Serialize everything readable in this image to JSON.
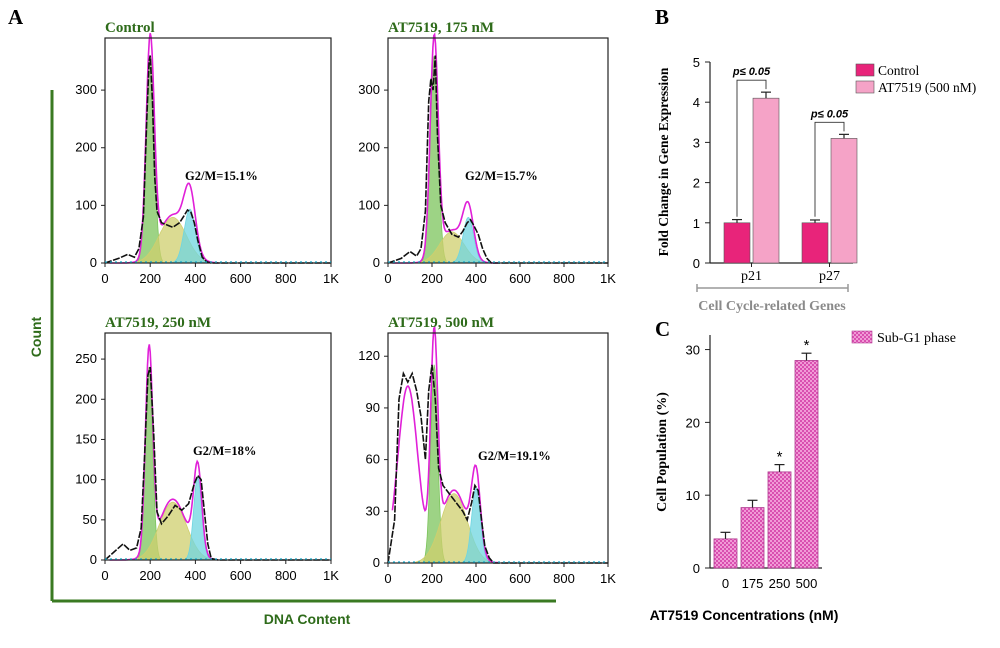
{
  "figure": {
    "panel_labels": {
      "a": "A",
      "b": "B",
      "c": "C"
    },
    "shared_y_label": "Count",
    "shared_x_label": "DNA Content",
    "colors": {
      "green_text": "#2e6b1a",
      "axis_green": "#3a7a22",
      "trace_black": "#111111",
      "envelope_magenta": "#e020d8",
      "g1_fill": "#7cc45c",
      "s_fill": "#cfcf6e",
      "g2_fill": "#6fd6e0",
      "control_bar": "#e8247a",
      "treated_bar": "#f5a3c7",
      "subg1_bar": "#f19ad6",
      "bracket_gray": "#999999",
      "group_label_gray": "#8a8a8a"
    }
  },
  "chart_data": [
    {
      "type": "area",
      "title": "Control",
      "annotation": "G2/M=15.1%",
      "x_ticks": [
        "0",
        "200",
        "400",
        "600",
        "800",
        "1K"
      ],
      "y_ticks": [
        "0",
        "100",
        "200",
        "300"
      ],
      "xlim": [
        0,
        1000
      ],
      "ylim": [
        0,
        380
      ],
      "series": [
        {
          "x": [
            0,
            60,
            100,
            130,
            150,
            170,
            185,
            195,
            200,
            210,
            220,
            230,
            250,
            280,
            300,
            330,
            350,
            365,
            380,
            395,
            410,
            430,
            450,
            470,
            500
          ],
          "y": [
            0,
            8,
            15,
            10,
            25,
            80,
            250,
            350,
            360,
            280,
            150,
            90,
            70,
            65,
            62,
            70,
            82,
            92,
            88,
            70,
            40,
            10,
            2,
            0,
            0
          ]
        }
      ]
    },
    {
      "type": "area",
      "title": "AT7519, 175 nM",
      "annotation": "G2/M=15.7%",
      "x_ticks": [
        "0",
        "200",
        "400",
        "600",
        "800",
        "1K"
      ],
      "y_ticks": [
        "0",
        "100",
        "200",
        "300"
      ],
      "xlim": [
        0,
        1000
      ],
      "ylim": [
        0,
        380
      ],
      "series": [
        {
          "x": [
            0,
            60,
            100,
            130,
            150,
            170,
            185,
            195,
            205,
            215,
            225,
            240,
            260,
            290,
            320,
            340,
            360,
            375,
            390,
            410,
            430,
            450,
            470,
            500
          ],
          "y": [
            0,
            8,
            20,
            12,
            25,
            90,
            280,
            320,
            300,
            360,
            220,
            100,
            70,
            50,
            45,
            55,
            70,
            75,
            65,
            50,
            25,
            8,
            0,
            0
          ]
        }
      ]
    },
    {
      "type": "area",
      "title": "AT7519, 250 nM",
      "annotation": "G2/M=18%",
      "x_ticks": [
        "0",
        "200",
        "400",
        "600",
        "800",
        "1K"
      ],
      "y_ticks": [
        "0",
        "50",
        "100",
        "150",
        "200",
        "250"
      ],
      "xlim": [
        0,
        1000
      ],
      "ylim": [
        0,
        275
      ],
      "series": [
        {
          "x": [
            0,
            40,
            80,
            110,
            140,
            160,
            175,
            190,
            200,
            215,
            230,
            250,
            280,
            310,
            340,
            370,
            395,
            410,
            425,
            440,
            455,
            470,
            500
          ],
          "y": [
            0,
            10,
            20,
            12,
            15,
            40,
            130,
            230,
            240,
            160,
            60,
            45,
            55,
            68,
            62,
            70,
            95,
            105,
            100,
            60,
            20,
            2,
            0
          ]
        }
      ]
    },
    {
      "type": "area",
      "title": "AT7519, 500 nM",
      "annotation": "G2/M=19.1%",
      "x_ticks": [
        "0",
        "200",
        "400",
        "600",
        "800",
        "1K"
      ],
      "y_ticks": [
        "0",
        "30",
        "60",
        "90",
        "120"
      ],
      "xlim": [
        0,
        1000
      ],
      "ylim": [
        0,
        130
      ],
      "series": [
        {
          "x": [
            0,
            30,
            50,
            70,
            90,
            110,
            130,
            150,
            170,
            185,
            200,
            215,
            230,
            250,
            280,
            310,
            340,
            360,
            380,
            395,
            410,
            425,
            440,
            460,
            480,
            500
          ],
          "y": [
            0,
            25,
            95,
            110,
            105,
            110,
            100,
            85,
            60,
            100,
            115,
            95,
            55,
            45,
            40,
            35,
            30,
            25,
            35,
            45,
            42,
            25,
            10,
            3,
            0,
            0
          ]
        }
      ]
    },
    {
      "type": "bar",
      "ylabel": "Fold Change in Gene Expression",
      "group_label": "Cell Cycle-related Genes",
      "categories": [
        "p21",
        "p27"
      ],
      "ylim": [
        0,
        5
      ],
      "y_ticks": [
        "0",
        "1",
        "2",
        "3",
        "4",
        "5"
      ],
      "legend_position": "top-right",
      "series": [
        {
          "name": "Control",
          "values": [
            1.0,
            1.0
          ],
          "errors": [
            0.08,
            0.07
          ]
        },
        {
          "name": "AT7519 (500 nM)",
          "values": [
            4.1,
            3.1
          ],
          "errors": [
            0.15,
            0.1
          ]
        }
      ],
      "annotations": [
        "p≤ 0.05",
        "p≤ 0.05"
      ]
    },
    {
      "type": "bar",
      "ylabel": "Cell Population (%)",
      "xlabel": "AT7519 Concentrations (nM)",
      "categories": [
        "0",
        "175",
        "250",
        "500"
      ],
      "ylim": [
        0,
        32
      ],
      "y_ticks": [
        "0",
        "10",
        "20",
        "30"
      ],
      "legend_position": "top-right",
      "series": [
        {
          "name": "Sub-G1 phase",
          "values": [
            4.0,
            8.3,
            13.2,
            28.5
          ],
          "errors": [
            0.9,
            1.0,
            1.0,
            1.0
          ]
        }
      ],
      "significance": [
        "",
        "",
        "*",
        "*"
      ]
    }
  ]
}
